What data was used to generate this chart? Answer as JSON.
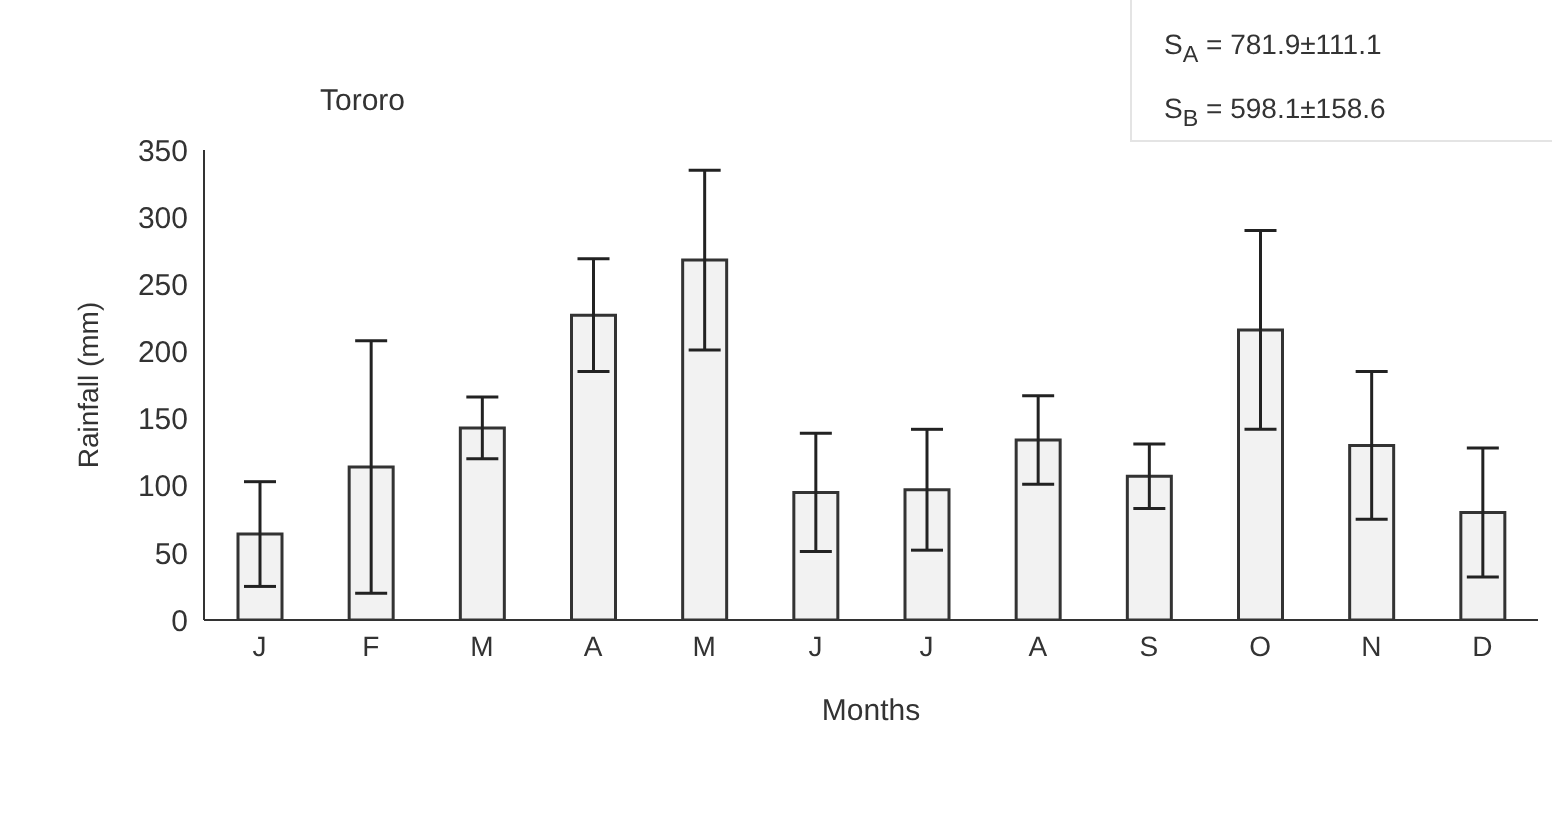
{
  "chart_data": {
    "type": "bar",
    "title": "Tororo",
    "xlabel": "Months",
    "ylabel": "Rainfall (mm)",
    "categories": [
      "J",
      "F",
      "M",
      "A",
      "M",
      "J",
      "J",
      "A",
      "S",
      "O",
      "N",
      "D"
    ],
    "values": [
      64,
      114,
      143,
      227,
      268,
      95,
      97,
      134,
      107,
      216,
      130,
      80
    ],
    "errors": [
      39,
      94,
      23,
      42,
      67,
      44,
      45,
      33,
      24,
      74,
      55,
      48
    ],
    "color": "#f2f2f2",
    "ylim": [
      0,
      350
    ],
    "yticks": [
      0,
      50,
      100,
      150,
      200,
      250,
      300,
      350
    ],
    "grid": false,
    "legend": false,
    "annotations": [
      "S$_{A}$ = 781.9±111.1",
      "S$_{B}$ = 598.1±158.6"
    ]
  }
}
